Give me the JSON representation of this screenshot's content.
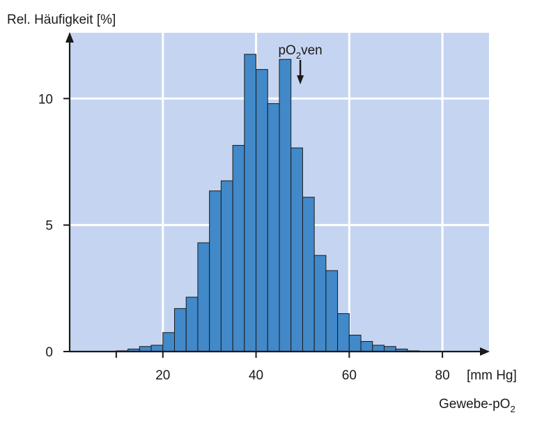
{
  "chart_data": {
    "type": "bar",
    "ylabel": "Rel. Häufigkeit [%]",
    "xlabel_unit": "[mm Hg]",
    "xlabel_prefix": "Gewebe-pO",
    "xlabel_sub": "2",
    "annotation": {
      "prefix": "pO",
      "sub": "2",
      "suffix": "ven",
      "x": 49.5
    },
    "xlim": [
      0,
      90
    ],
    "ylim": [
      0,
      12.6
    ],
    "xticks": [
      20,
      40,
      60,
      80
    ],
    "yticks": [
      0,
      5,
      10
    ],
    "xgrid": [
      20,
      40,
      60,
      80
    ],
    "ygrid": [
      5,
      10
    ],
    "grid": true,
    "bin_width": 2.5,
    "bins_start": [
      10.0,
      12.5,
      15.0,
      17.5,
      20.0,
      22.5,
      25.0,
      27.5,
      30.0,
      32.5,
      35.0,
      37.5,
      40.0,
      42.5,
      45.0,
      47.5,
      50.0,
      52.5,
      55.0,
      57.5,
      60.0,
      62.5,
      65.0,
      67.5,
      70.0,
      72.5
    ],
    "values": [
      0.03,
      0.1,
      0.2,
      0.25,
      0.75,
      1.7,
      2.15,
      4.3,
      6.35,
      6.75,
      8.15,
      11.75,
      11.15,
      9.8,
      11.55,
      8.05,
      6.1,
      3.8,
      3.2,
      1.5,
      0.65,
      0.4,
      0.25,
      0.2,
      0.1,
      0.03
    ]
  },
  "colors": {
    "plot_background": "#c5d5f1",
    "bar_fill": "#4189c8",
    "grid": "#ffffff",
    "axis": "#1a1a1a"
  }
}
